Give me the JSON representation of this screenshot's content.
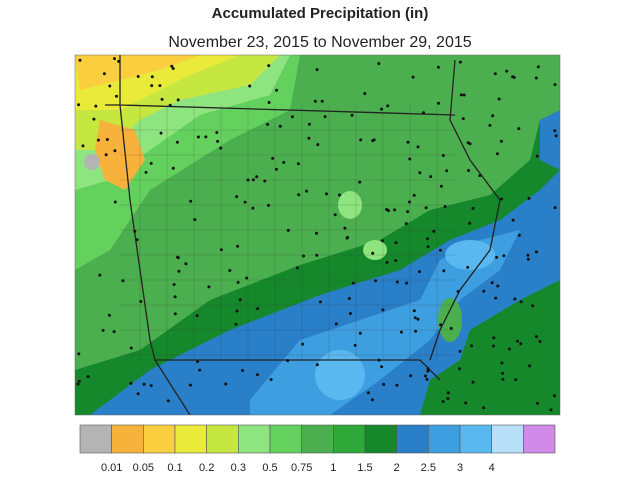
{
  "title": "Accumulated Precipitation (in)",
  "subtitle": "November 23, 2015 to November 29, 2015",
  "legend": {
    "colors": [
      "#b4b4b4",
      "#f7b23b",
      "#f9cf3f",
      "#e9ea3a",
      "#c6e640",
      "#8ee47e",
      "#64d15f",
      "#4caf4f",
      "#2fa83a",
      "#16882c",
      "#2a7fc9",
      "#3d9ee0",
      "#5ab8f0",
      "#b8e0fb",
      "#d08ae8"
    ],
    "labels": [
      "0.01",
      "0.05",
      "0.1",
      "0.2",
      "0.3",
      "0.5",
      "0.75",
      "1",
      "1.5",
      "2",
      "2.5",
      "3",
      "4"
    ]
  }
}
